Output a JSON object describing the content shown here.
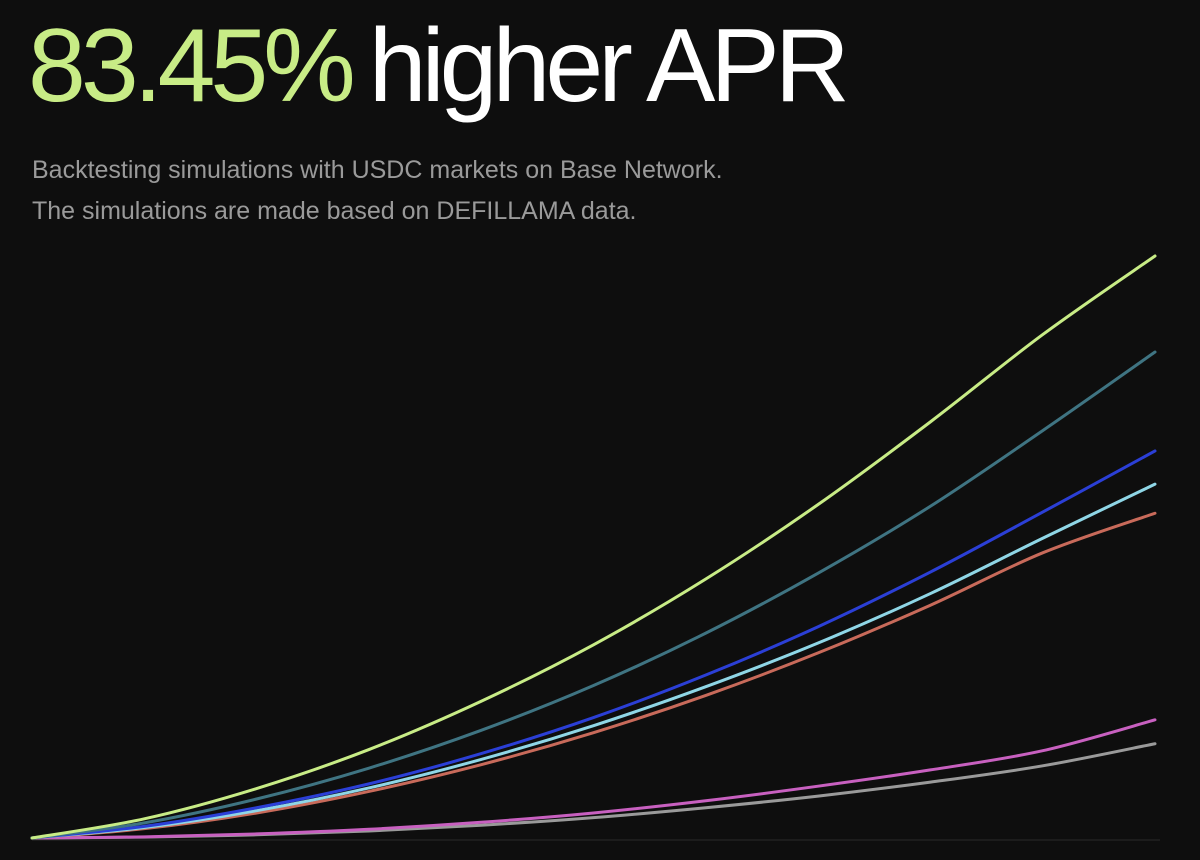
{
  "header": {
    "highlight": "83.45%",
    "rest": "higher APR"
  },
  "subtitle": {
    "line1": "Backtesting simulations with USDC markets on Base Network.",
    "line2": "The simulations are made based on DEFILLAMA data."
  },
  "colors": {
    "background": "#0e0e0e",
    "accent": "#c8ec86",
    "text": "#ffffff",
    "muted": "#9a9a9a",
    "baseline": "#2a2a2a"
  },
  "chart_data": {
    "type": "line",
    "title": "",
    "xlabel": "",
    "ylabel": "",
    "grid": false,
    "legend": "none",
    "xlim": [
      0,
      100
    ],
    "ylim": [
      0,
      100
    ],
    "x": [
      0,
      10,
      20,
      30,
      40,
      50,
      60,
      70,
      80,
      90,
      100
    ],
    "series": [
      {
        "color": "#c8ec86",
        "values": [
          0,
          3.3,
          8.5,
          15.2,
          23.5,
          33.2,
          44.5,
          57.3,
          71.5,
          86.5,
          100
        ]
      },
      {
        "color": "#3f7482",
        "values": [
          0,
          2.6,
          6.7,
          12.0,
          18.5,
          26.2,
          35.2,
          45.5,
          57.0,
          70.0,
          83.5
        ]
      },
      {
        "color": "#2b3fd6",
        "values": [
          0,
          2.0,
          5.2,
          9.3,
          14.5,
          20.7,
          28.0,
          36.3,
          45.7,
          56.0,
          66.5
        ]
      },
      {
        "color": "#8fd6e6",
        "values": [
          0,
          1.8,
          4.7,
          8.6,
          13.5,
          19.3,
          26.0,
          33.5,
          42.0,
          51.5,
          60.8
        ]
      },
      {
        "color": "#c86a5a",
        "values": [
          0,
          1.6,
          4.3,
          8.0,
          12.6,
          18.1,
          24.5,
          31.8,
          40.0,
          49.0,
          55.8
        ]
      },
      {
        "color": "#c860c0",
        "values": [
          0,
          0.2,
          0.7,
          1.5,
          2.7,
          4.3,
          6.4,
          8.9,
          11.7,
          15.0,
          20.3
        ]
      },
      {
        "color": "#9a9a9a",
        "values": [
          0,
          0.15,
          0.55,
          1.2,
          2.2,
          3.5,
          5.2,
          7.2,
          9.6,
          12.4,
          16.2
        ]
      }
    ]
  }
}
